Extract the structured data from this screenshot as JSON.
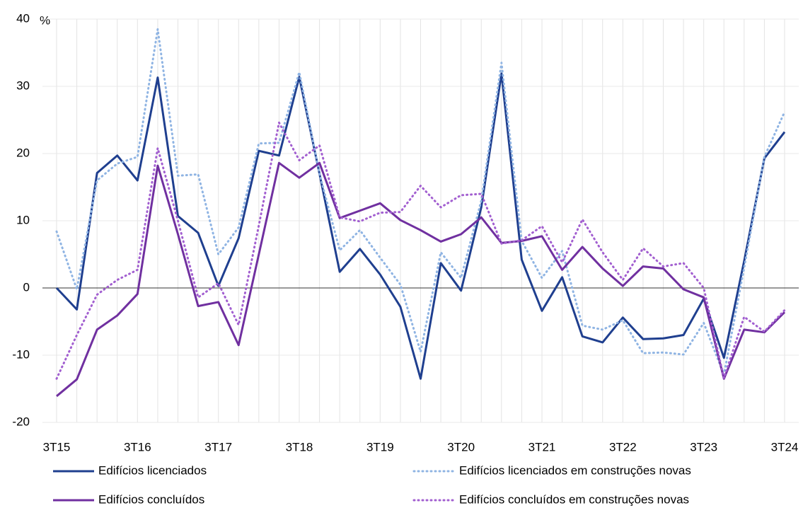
{
  "chart_data": {
    "type": "line",
    "y_unit": "%",
    "categories": [
      "3T15",
      null,
      null,
      null,
      "3T16",
      null,
      null,
      null,
      "3T17",
      null,
      null,
      null,
      "3T18",
      null,
      null,
      null,
      "3T19",
      null,
      null,
      null,
      "3T20",
      null,
      null,
      null,
      "3T21",
      null,
      null,
      null,
      "3T22",
      null,
      null,
      null,
      "3T23",
      null,
      null,
      null,
      "3T24"
    ],
    "series": [
      {
        "name": "Edifícios licenciados",
        "color": "#1f3f8f",
        "style": "solid",
        "values": [
          0,
          -3.2,
          17.1,
          19.7,
          16.0,
          31.3,
          10.7,
          8.2,
          0.3,
          7.4,
          20.4,
          19.7,
          31.4,
          17.0,
          2.4,
          5.8,
          2.0,
          -2.8,
          -13.5,
          3.7,
          -0.4,
          12.0,
          31.9,
          4.2,
          -3.4,
          1.6,
          -7.2,
          -8.1,
          -4.4,
          -7.6,
          -7.5,
          -7.0,
          -1.6,
          -10.4,
          4.0,
          19.3,
          23.2
        ]
      },
      {
        "name": "Edifícios licenciados em construções novas",
        "color": "#8fb4e3",
        "style": "dotted",
        "values": [
          8.4,
          -0.2,
          16.0,
          18.5,
          19.5,
          38.5,
          16.7,
          16.9,
          5.0,
          9.0,
          21.5,
          21.6,
          32.1,
          17.0,
          5.6,
          8.6,
          4.5,
          0.5,
          -9.5,
          5.3,
          1.5,
          13.0,
          33.5,
          7.0,
          1.5,
          5.5,
          -5.6,
          -6.2,
          -4.8,
          -9.7,
          -9.6,
          -9.9,
          -5.2,
          -12.9,
          3.0,
          19.5,
          26.2
        ]
      },
      {
        "name": "Edifícios concluídos",
        "color": "#7030a0",
        "style": "solid",
        "values": [
          -16.1,
          -13.6,
          -6.2,
          -4.1,
          -0.9,
          18.2,
          8.0,
          -2.7,
          -2.1,
          -8.5,
          5.0,
          18.6,
          16.4,
          18.6,
          10.4,
          11.5,
          12.6,
          10.1,
          8.6,
          6.9,
          8.0,
          10.5,
          6.7,
          7.0,
          7.7,
          2.7,
          6.1,
          2.9,
          0.3,
          3.2,
          2.9,
          -0.2,
          -1.4,
          -13.5,
          -6.2,
          -6.6,
          -3.6
        ]
      },
      {
        "name": "Edifícios concluídos em construções novas",
        "color": "#a25fd0",
        "style": "dotted",
        "values": [
          -13.5,
          -7.0,
          -1.0,
          1.2,
          2.7,
          20.8,
          10.0,
          -1.4,
          0.7,
          -5.5,
          9.3,
          24.6,
          19.0,
          21.2,
          10.5,
          9.9,
          11.2,
          11.3,
          15.2,
          12.0,
          13.8,
          14.0,
          6.6,
          7.1,
          9.2,
          3.8,
          10.2,
          5.3,
          1.2,
          5.9,
          3.2,
          3.7,
          0,
          -13.4,
          -4.3,
          -6.5,
          -3.3
        ]
      }
    ],
    "ylim": [
      -20,
      40
    ],
    "yticks": [
      -20,
      -10,
      0,
      10,
      20,
      30,
      40
    ],
    "grid": true,
    "legend": "bottom"
  }
}
